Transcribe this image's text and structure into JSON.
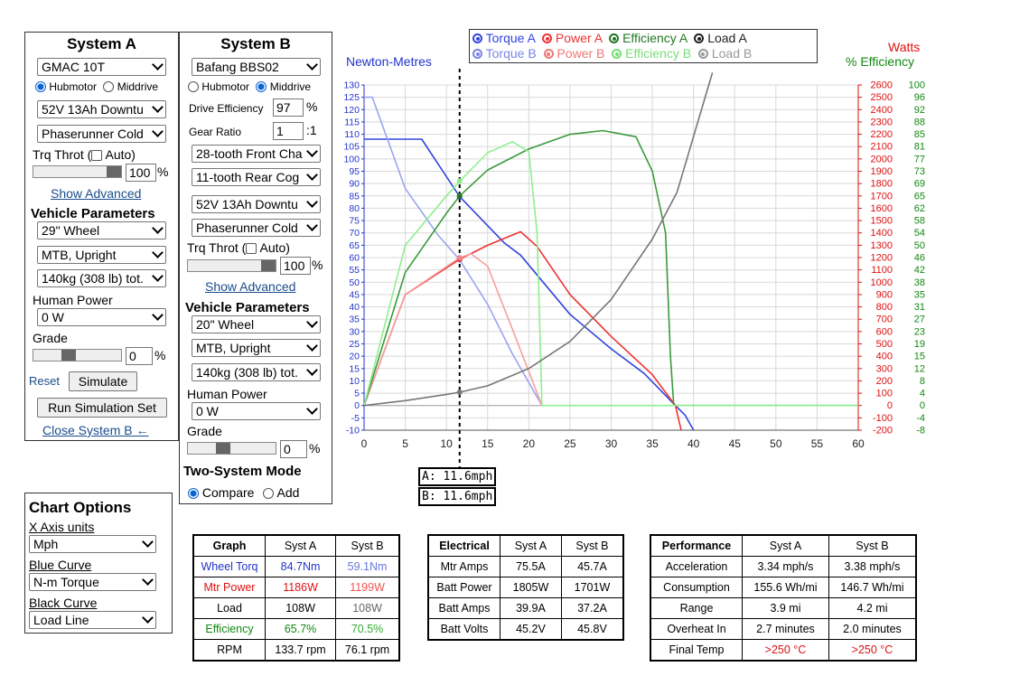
{
  "systemA": {
    "title": "System A",
    "motor": "GMAC 10T",
    "mount_opt1": "Hubmotor",
    "mount_opt2": "Middrive",
    "battery": "52V 13Ah Downtu",
    "controller": "Phaserunner Cold",
    "trq_throt": "Trq Throt (",
    "auto": "Auto)",
    "throttle": "100",
    "pct": "%",
    "show_advanced": "Show Advanced",
    "vehicle_params": "Vehicle Parameters",
    "wheel": "29\"  Wheel",
    "bike": "MTB, Upright",
    "weight": "140kg (308 lb) tot.",
    "human_power_label": "Human Power",
    "human_power": "0 W",
    "grade_label": "Grade",
    "grade": "0",
    "reset": "Reset",
    "simulate": "Simulate",
    "run_sim_set": "Run Simulation Set",
    "close_b": "Close System B ←"
  },
  "systemB": {
    "title": "System B",
    "motor": "Bafang BBS02",
    "mount_opt1": "Hubmotor",
    "mount_opt2": "Middrive",
    "drive_eff_label": "Drive Efficiency",
    "drive_eff": "97",
    "pct": "%",
    "gear_ratio_label": "Gear Ratio",
    "gear_ratio": "1",
    "gear_suffix": ":1",
    "front": "28-tooth Front Cha",
    "rear": "11-tooth Rear Cog",
    "battery": "52V 13Ah Downtu",
    "controller": "Phaserunner Cold",
    "trq_throt": "Trq Throt (",
    "auto": "Auto)",
    "throttle": "100",
    "show_advanced": "Show Advanced",
    "vehicle_params": "Vehicle Parameters",
    "wheel": "20\"  Wheel",
    "bike": "MTB, Upright",
    "weight": "140kg (308 lb) tot.",
    "human_power_label": "Human Power",
    "human_power": "0 W",
    "grade_label": "Grade",
    "grade": "0",
    "two_system": "Two-System Mode",
    "compare": "Compare",
    "add": "Add"
  },
  "chart_options": {
    "title": "Chart Options",
    "x_axis_label": "X Axis units",
    "x_axis": "Mph",
    "blue_label": "Blue Curve",
    "blue": "N-m Torque",
    "black_label": "Black Curve",
    "black": "Load Line"
  },
  "legend": {
    "row1": [
      "Torque A",
      "Power A",
      "Efficiency A",
      "Load A"
    ],
    "row2": [
      "Torque B",
      "Power B",
      "Efficiency B",
      "Load B"
    ]
  },
  "colors": {
    "torqueA": "#3344dd",
    "torqueB": "#9aa4f0",
    "powerA": "#ee3333",
    "powerB": "#f5a0a0",
    "effA": "#3a9a3a",
    "effB": "#90ee90",
    "loadA": "#777777",
    "loadB": "#aaaaaa"
  },
  "cursor": {
    "a": "A: 11.6mph",
    "b": "B: 11.6mph"
  },
  "chart_data": {
    "type": "line",
    "xlim": [
      0,
      60
    ],
    "xticks": [
      0,
      5,
      10,
      15,
      20,
      25,
      30,
      35,
      40,
      45,
      50,
      55,
      60
    ],
    "left_axis_label": "Newton-Metres",
    "right_axis_label1": "Watts",
    "right_axis_label2": "% Efficiency",
    "ylim_nm": [
      -10,
      130
    ],
    "nm_ticks": [
      130,
      125,
      120,
      115,
      110,
      105,
      100,
      95,
      90,
      85,
      80,
      75,
      70,
      65,
      60,
      55,
      50,
      45,
      40,
      35,
      30,
      25,
      20,
      15,
      10,
      5,
      0,
      -5,
      -10
    ],
    "watt_ticks": [
      "2600",
      "2500",
      "2400",
      "2300",
      "2200",
      "2100",
      "2000",
      "1900",
      "1800",
      "1700",
      "1600",
      "1500",
      "1400",
      "1300",
      "1200",
      "1100",
      "1000",
      "900",
      "800",
      "700",
      "600",
      "500",
      "400",
      "300",
      "200",
      "100",
      "0",
      "-100",
      "-200"
    ],
    "eff_ticks": [
      "100",
      "96",
      "92",
      "88",
      "85",
      "81",
      "77",
      "73",
      "69",
      "65",
      "62",
      "58",
      "54",
      "50",
      "46",
      "42",
      "38",
      "35",
      "31",
      "27",
      "23",
      "19",
      "15",
      "12",
      "8",
      "4",
      "0",
      "-4",
      "-8"
    ],
    "watt_max": 2600,
    "watt_min": -200,
    "series": [
      {
        "key": "torqueA",
        "axis": "nm",
        "x": [
          0,
          7,
          11.6,
          17,
          19,
          25,
          30,
          34,
          37.8,
          39,
          40
        ],
        "y": [
          108,
          108,
          84.7,
          66,
          61,
          37,
          23,
          13,
          0,
          -4,
          -10
        ]
      },
      {
        "key": "torqueB",
        "axis": "nm",
        "x": [
          0,
          1,
          5,
          9,
          11.6,
          15,
          18,
          21.6
        ],
        "y": [
          125,
          125,
          88,
          69,
          59.1,
          41,
          21,
          0
        ]
      },
      {
        "key": "powerA",
        "axis": "w",
        "x": [
          0,
          5,
          11.6,
          15,
          19,
          21,
          25,
          30,
          35,
          37.8,
          38.5
        ],
        "y": [
          0,
          900,
          1186,
          1300,
          1410,
          1290,
          900,
          560,
          250,
          0,
          -200
        ]
      },
      {
        "key": "powerB",
        "axis": "w",
        "x": [
          0,
          5,
          11.6,
          13,
          15,
          18,
          21.6
        ],
        "y": [
          0,
          900,
          1199,
          1230,
          1130,
          620,
          0
        ]
      },
      {
        "key": "effA",
        "axis": "w",
        "x": [
          0,
          5,
          10,
          11.6,
          15,
          20,
          25,
          29,
          33,
          35,
          36.6,
          37.2,
          37.6,
          60
        ],
        "y": [
          0,
          1080,
          1560,
          1700,
          1910,
          2080,
          2200,
          2230,
          2180,
          1900,
          1400,
          400,
          0,
          0
        ],
        "eff_x": [
          11.6
        ],
        "eff_y": [
          65.7
        ]
      },
      {
        "key": "effB",
        "axis": "w",
        "x": [
          0,
          5,
          10,
          11.6,
          15,
          18,
          20,
          21,
          21.6,
          60
        ],
        "y": [
          0,
          1300,
          1700,
          1820,
          2050,
          2140,
          2060,
          1400,
          0,
          0
        ]
      },
      {
        "key": "loadA",
        "axis": "w",
        "x": [
          0,
          5,
          10,
          11.6,
          15,
          20,
          25,
          30,
          35,
          38,
          42.3
        ],
        "y": [
          0,
          40,
          90,
          108,
          160,
          300,
          520,
          860,
          1350,
          1730,
          2700
        ]
      }
    ]
  },
  "graph_table": {
    "headers": [
      "Graph",
      "Syst A",
      "Syst B"
    ],
    "rows": [
      [
        "Wheel Torq",
        "84.7Nm",
        "59.1Nm"
      ],
      [
        "Mtr Power",
        "1186W",
        "1199W"
      ],
      [
        "Load",
        "108W",
        "108W"
      ],
      [
        "Efficiency",
        "65.7%",
        "70.5%"
      ],
      [
        "RPM",
        "133.7 rpm",
        "76.1 rpm"
      ]
    ]
  },
  "electrical_table": {
    "headers": [
      "Electrical",
      "Syst A",
      "Syst B"
    ],
    "rows": [
      [
        "Mtr Amps",
        "75.5A",
        "45.7A"
      ],
      [
        "Batt Power",
        "1805W",
        "1701W"
      ],
      [
        "Batt Amps",
        "39.9A",
        "37.2A"
      ],
      [
        "Batt Volts",
        "45.2V",
        "45.8V"
      ]
    ]
  },
  "performance_table": {
    "headers": [
      "Performance",
      "Syst A",
      "Syst B"
    ],
    "rows": [
      [
        "Acceleration",
        "3.34 mph/s",
        "3.38 mph/s"
      ],
      [
        "Consumption",
        "155.6 Wh/mi",
        "146.7 Wh/mi"
      ],
      [
        "Range",
        "3.9 mi",
        "4.2 mi"
      ],
      [
        "Overheat In",
        "2.7 minutes",
        "2.0 minutes"
      ],
      [
        "Final Temp",
        ">250 °C",
        ">250 °C"
      ]
    ]
  }
}
